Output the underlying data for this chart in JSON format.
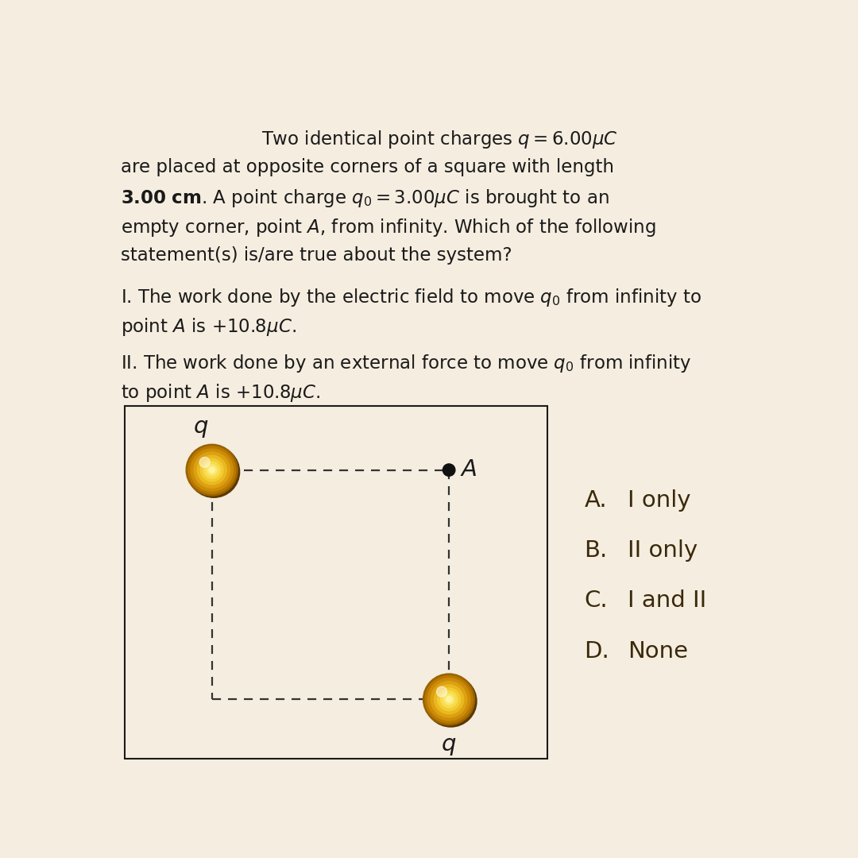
{
  "bg_color": "#f5ede0",
  "title_line1": "Two identical point charges $q = 6.00\\mu C$",
  "title_line2": "are placed at opposite corners of a square with length",
  "title_line3": "$\\mathbf{3.00}$ $\\mathbf{cm}$. A point charge $q_0 = 3.00\\mu C$ is brought to an",
  "title_line4": "empty corner, point $A$, from infinity. Which of the following",
  "title_line5": "statement(s) is/are true about the system?",
  "stmt1_line1": "I. The work done by the electric field to move $q_0$ from infinity to",
  "stmt1_line2": "point $A$ is $+10.8\\mu C$.",
  "stmt2_line1": "II. The work done by an external force to move $q_0$ from infinity",
  "stmt2_line2": "to point $A$ is $+10.8\\mu C$.",
  "choices_letters": [
    "A.",
    "B.",
    "C.",
    "D."
  ],
  "choices_text": [
    "I only",
    "II only",
    "I and II",
    "None"
  ],
  "choice_color": "#3a2a0a",
  "text_color": "#1a1a1a",
  "box_color": "#1a1a1a",
  "dashed_color": "#333333",
  "dot_color": "#111111",
  "label_q_color": "#1a1a1a",
  "label_A_color": "#1a1a1a"
}
